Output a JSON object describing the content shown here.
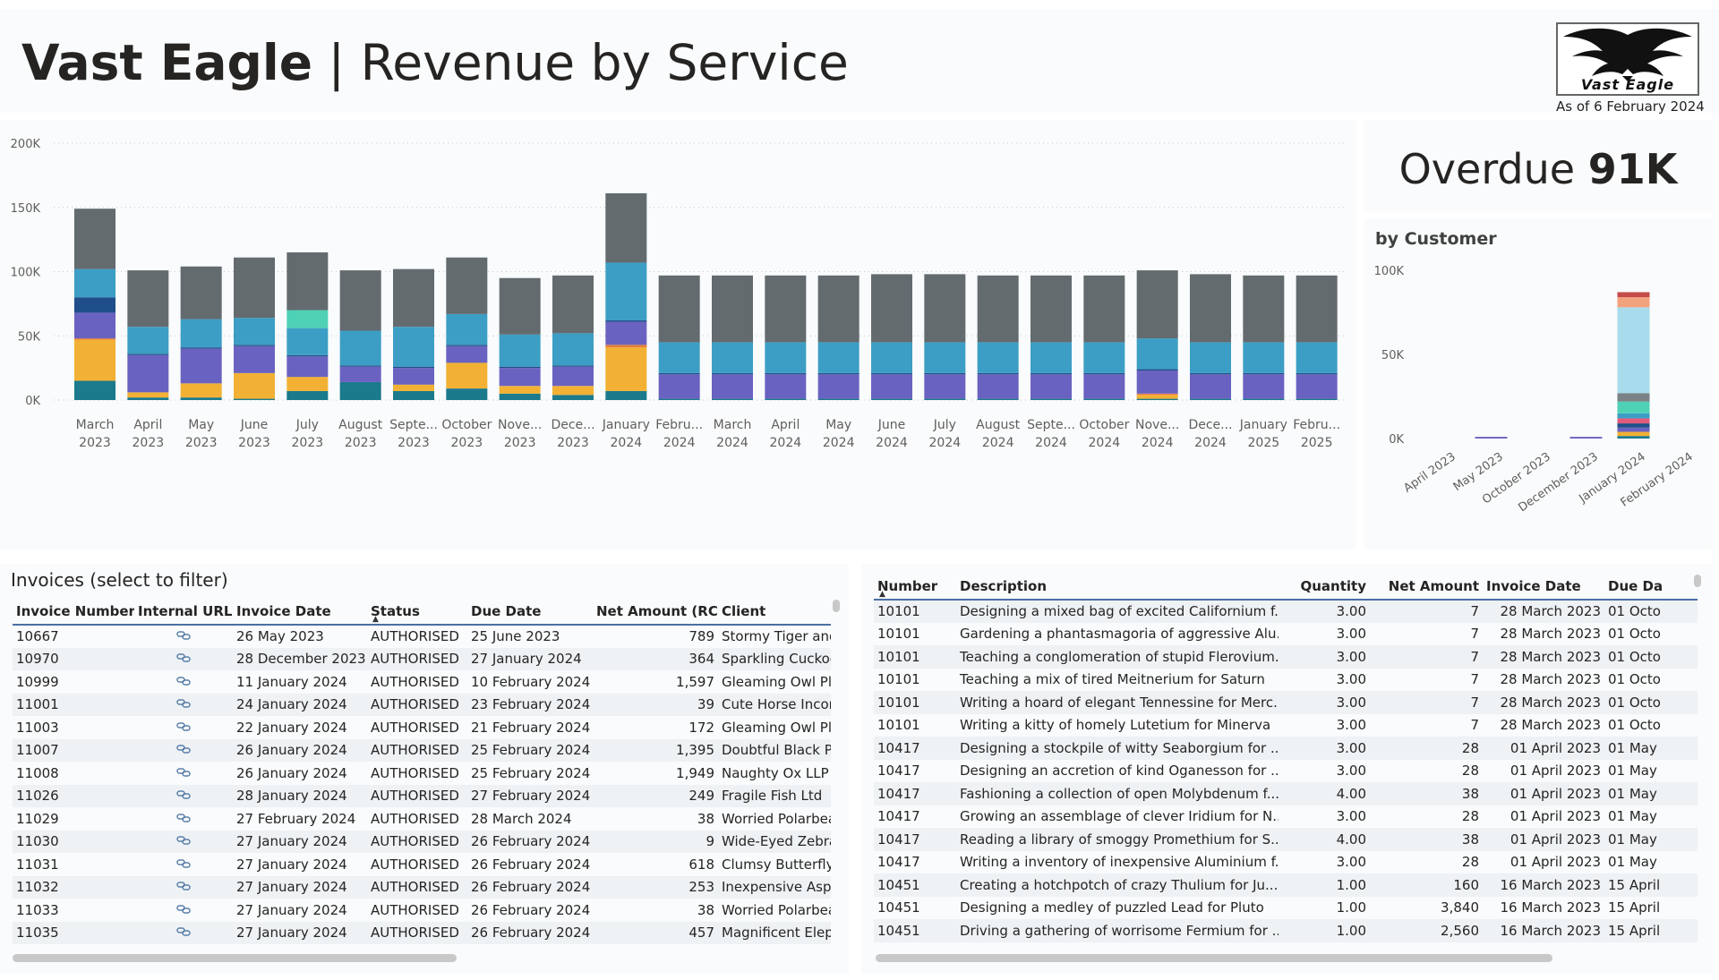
{
  "header": {
    "brand": "Vast Eagle",
    "separator": " | ",
    "subtitle": "Revenue by Service",
    "logo_text": "Vast Eagle",
    "as_of": "As of 6 February 2024"
  },
  "kpi": {
    "label": "Overdue ",
    "value": "91K"
  },
  "customer_chart_title": "by Customer",
  "chart_data": [
    {
      "type": "bar",
      "stacked": true,
      "categories": [
        [
          "March",
          "2023"
        ],
        [
          "April",
          "2023"
        ],
        [
          "May",
          "2023"
        ],
        [
          "June",
          "2023"
        ],
        [
          "July",
          "2023"
        ],
        [
          "August",
          "2023"
        ],
        [
          "Septe...",
          "2023"
        ],
        [
          "October",
          "2023"
        ],
        [
          "Nove...",
          "2023"
        ],
        [
          "Dece...",
          "2023"
        ],
        [
          "January",
          "2024"
        ],
        [
          "Febru...",
          "2024"
        ],
        [
          "March",
          "2024"
        ],
        [
          "April",
          "2024"
        ],
        [
          "May",
          "2024"
        ],
        [
          "June",
          "2024"
        ],
        [
          "July",
          "2024"
        ],
        [
          "August",
          "2024"
        ],
        [
          "Septe...",
          "2024"
        ],
        [
          "October",
          "2024"
        ],
        [
          "Nove...",
          "2024"
        ],
        [
          "Dece...",
          "2024"
        ],
        [
          "January",
          "2025"
        ],
        [
          "Febru...",
          "2025"
        ]
      ],
      "ylim": [
        0,
        200000
      ],
      "yticks": [
        "0K",
        "50K",
        "100K",
        "150K",
        "200K"
      ],
      "grid": true,
      "series": [
        {
          "color": "#1b7a8c",
          "values": [
            15000,
            2000,
            2000,
            1000,
            7000,
            14000,
            7000,
            9000,
            5000,
            4000,
            7000,
            1000,
            1000,
            1000,
            1000,
            1000,
            1000,
            1000,
            1000,
            1000,
            1000,
            1000,
            1000,
            1000
          ]
        },
        {
          "color": "#f2b134",
          "values": [
            32000,
            4000,
            11000,
            20000,
            11000,
            0,
            5000,
            20000,
            6000,
            7000,
            34000,
            0,
            0,
            0,
            0,
            0,
            0,
            0,
            0,
            0,
            3000,
            0,
            0,
            0
          ]
        },
        {
          "color": "#e57f3a",
          "values": [
            1000,
            0,
            0,
            0,
            0,
            0,
            0,
            0,
            0,
            0,
            2000,
            0,
            0,
            0,
            0,
            0,
            0,
            0,
            0,
            0,
            1000,
            0,
            0,
            0
          ]
        },
        {
          "color": "#6a62c0",
          "values": [
            20000,
            29000,
            27000,
            21000,
            16000,
            12000,
            13000,
            13000,
            14000,
            15000,
            18000,
            19000,
            19000,
            19000,
            19000,
            19000,
            19000,
            19000,
            19000,
            19000,
            18000,
            19000,
            19000,
            19000
          ]
        },
        {
          "color": "#1f4e8a",
          "values": [
            12000,
            1000,
            1000,
            1000,
            1000,
            1000,
            1000,
            1000,
            1000,
            1000,
            1000,
            1000,
            1000,
            1000,
            1000,
            1000,
            1000,
            1000,
            1000,
            1000,
            1000,
            1000,
            1000,
            1000
          ]
        },
        {
          "color": "#3c9ec4",
          "values": [
            22000,
            21000,
            22000,
            21000,
            21000,
            27000,
            31000,
            24000,
            25000,
            25000,
            45000,
            24000,
            24000,
            24000,
            24000,
            24000,
            24000,
            24000,
            24000,
            24000,
            24000,
            24000,
            24000,
            24000
          ]
        },
        {
          "color": "#4fd1b6",
          "values": [
            0,
            0,
            0,
            0,
            14000,
            0,
            0,
            0,
            0,
            0,
            0,
            0,
            0,
            0,
            0,
            0,
            0,
            0,
            0,
            0,
            0,
            0,
            0,
            0
          ]
        },
        {
          "color": "#636b6f",
          "values": [
            47000,
            44000,
            41000,
            47000,
            45000,
            47000,
            45000,
            44000,
            44000,
            45000,
            54000,
            52000,
            52000,
            52000,
            52000,
            53000,
            53000,
            52000,
            52000,
            52000,
            53000,
            53000,
            52000,
            52000
          ]
        }
      ]
    },
    {
      "type": "bar",
      "stacked": true,
      "categories": [
        "April 2023",
        "May 2023",
        "October 2023",
        "December 2023",
        "January 2024",
        "February 2024"
      ],
      "ylim": [
        0,
        100000
      ],
      "yticks": [
        "0K",
        "50K",
        "100K"
      ],
      "series": [
        {
          "color": "#1b7a8c",
          "values": [
            0,
            0,
            0,
            0,
            1500,
            0
          ]
        },
        {
          "color": "#f2b134",
          "values": [
            0,
            0,
            0,
            0,
            2500,
            0
          ]
        },
        {
          "color": "#6a62c0",
          "values": [
            0,
            1000,
            0,
            1000,
            2500,
            0
          ]
        },
        {
          "color": "#1f4e8a",
          "values": [
            0,
            0,
            0,
            0,
            2500,
            0
          ]
        },
        {
          "color": "#e25a7c",
          "values": [
            0,
            0,
            0,
            0,
            3000,
            0
          ]
        },
        {
          "color": "#3c9ec4",
          "values": [
            0,
            0,
            0,
            0,
            3000,
            0
          ]
        },
        {
          "color": "#4fd1b6",
          "values": [
            0,
            0,
            0,
            0,
            7000,
            0
          ]
        },
        {
          "color": "#7a8286",
          "values": [
            0,
            0,
            0,
            0,
            5000,
            0
          ]
        },
        {
          "color": "#a8dcec",
          "values": [
            0,
            0,
            0,
            0,
            51000,
            0
          ]
        },
        {
          "color": "#f3a27e",
          "values": [
            0,
            0,
            0,
            0,
            6000,
            0
          ]
        },
        {
          "color": "#c64b4b",
          "values": [
            0,
            0,
            0,
            0,
            3000,
            0
          ]
        }
      ]
    }
  ],
  "invoices": {
    "title": "Invoices (select to filter)",
    "columns": [
      "Invoice Number",
      "Internal URL",
      "Invoice Date",
      "Status",
      "Due Date",
      "Net Amount (RC)",
      "Client"
    ],
    "link_icon": "link-icon",
    "rows": [
      [
        "10667",
        "26 May 2023",
        "AUTHORISED",
        "25 June 2023",
        "789",
        "Stormy Tiger and"
      ],
      [
        "10970",
        "28 December 2023",
        "AUTHORISED",
        "27 January 2024",
        "364",
        "Sparkling Cuckoo"
      ],
      [
        "10999",
        "11 January 2024",
        "AUTHORISED",
        "10 February 2024",
        "1,597",
        "Gleaming Owl Pl"
      ],
      [
        "11001",
        "24 January 2024",
        "AUTHORISED",
        "23 February 2024",
        "39",
        "Cute Horse Incor"
      ],
      [
        "11003",
        "22 January 2024",
        "AUTHORISED",
        "21 February 2024",
        "172",
        "Gleaming Owl Pl"
      ],
      [
        "11007",
        "26 January 2024",
        "AUTHORISED",
        "25 February 2024",
        "1,395",
        "Doubtful Black P"
      ],
      [
        "11008",
        "26 January 2024",
        "AUTHORISED",
        "25 February 2024",
        "1,949",
        "Naughty Ox LLP"
      ],
      [
        "11026",
        "28 January 2024",
        "AUTHORISED",
        "27 February 2024",
        "249",
        "Fragile Fish Ltd"
      ],
      [
        "11029",
        "27 February 2024",
        "AUTHORISED",
        "28 March 2024",
        "38",
        "Worried Polarbea"
      ],
      [
        "11030",
        "27 January 2024",
        "AUTHORISED",
        "26 February 2024",
        "9",
        "Wide-Eyed Zebra"
      ],
      [
        "11031",
        "27 January 2024",
        "AUTHORISED",
        "26 February 2024",
        "618",
        "Clumsy Butterfly"
      ],
      [
        "11032",
        "27 January 2024",
        "AUTHORISED",
        "26 February 2024",
        "253",
        "Inexpensive Asp"
      ],
      [
        "11033",
        "27 January 2024",
        "AUTHORISED",
        "26 February 2024",
        "38",
        "Worried Polarbea"
      ],
      [
        "11035",
        "27 January 2024",
        "AUTHORISED",
        "26 February 2024",
        "457",
        "Magnificent Elep"
      ]
    ]
  },
  "lines": {
    "columns": [
      "Number",
      "Description",
      "Quantity",
      "Net Amount",
      "Invoice Date",
      "Due Da"
    ],
    "rows": [
      [
        "10101",
        "Designing a mixed bag of excited Californium f...",
        "3.00",
        "7",
        "28 March 2023",
        "01 Octo"
      ],
      [
        "10101",
        "Gardening a phantasmagoria of aggressive Alu...",
        "3.00",
        "7",
        "28 March 2023",
        "01 Octo"
      ],
      [
        "10101",
        "Teaching a conglomeration of stupid Flerovium...",
        "3.00",
        "7",
        "28 March 2023",
        "01 Octo"
      ],
      [
        "10101",
        "Teaching a mix of tired Meitnerium for Saturn",
        "3.00",
        "7",
        "28 March 2023",
        "01 Octo"
      ],
      [
        "10101",
        "Writing a hoard of elegant Tennessine for Merc...",
        "3.00",
        "7",
        "28 March 2023",
        "01 Octo"
      ],
      [
        "10101",
        "Writing a kitty of homely Lutetium for Minerva",
        "3.00",
        "7",
        "28 March 2023",
        "01 Octo"
      ],
      [
        "10417",
        "Designing a stockpile of witty Seaborgium for ...",
        "3.00",
        "28",
        "01 April 2023",
        "01 May"
      ],
      [
        "10417",
        "Designing an accretion of kind Oganesson for ...",
        "3.00",
        "28",
        "01 April 2023",
        "01 May"
      ],
      [
        "10417",
        "Fashioning a collection of open Molybdenum f...",
        "4.00",
        "38",
        "01 April 2023",
        "01 May"
      ],
      [
        "10417",
        "Growing an assemblage of clever Iridium for N...",
        "3.00",
        "28",
        "01 April 2023",
        "01 May"
      ],
      [
        "10417",
        "Reading a library of smoggy Promethium for S...",
        "4.00",
        "38",
        "01 April 2023",
        "01 May"
      ],
      [
        "10417",
        "Writing a inventory of inexpensive Aluminium f...",
        "3.00",
        "28",
        "01 April 2023",
        "01 May"
      ],
      [
        "10451",
        "Creating  a hotchpotch of crazy Thulium for Ju...",
        "1.00",
        "160",
        "16 March 2023",
        "15 April"
      ],
      [
        "10451",
        "Designing a medley of puzzled Lead for Pluto",
        "1.00",
        "3,840",
        "16 March 2023",
        "15 April"
      ],
      [
        "10451",
        "Driving a gathering of worrisome Fermium for ...",
        "1.00",
        "2,560",
        "16 March 2023",
        "15 April"
      ]
    ]
  }
}
